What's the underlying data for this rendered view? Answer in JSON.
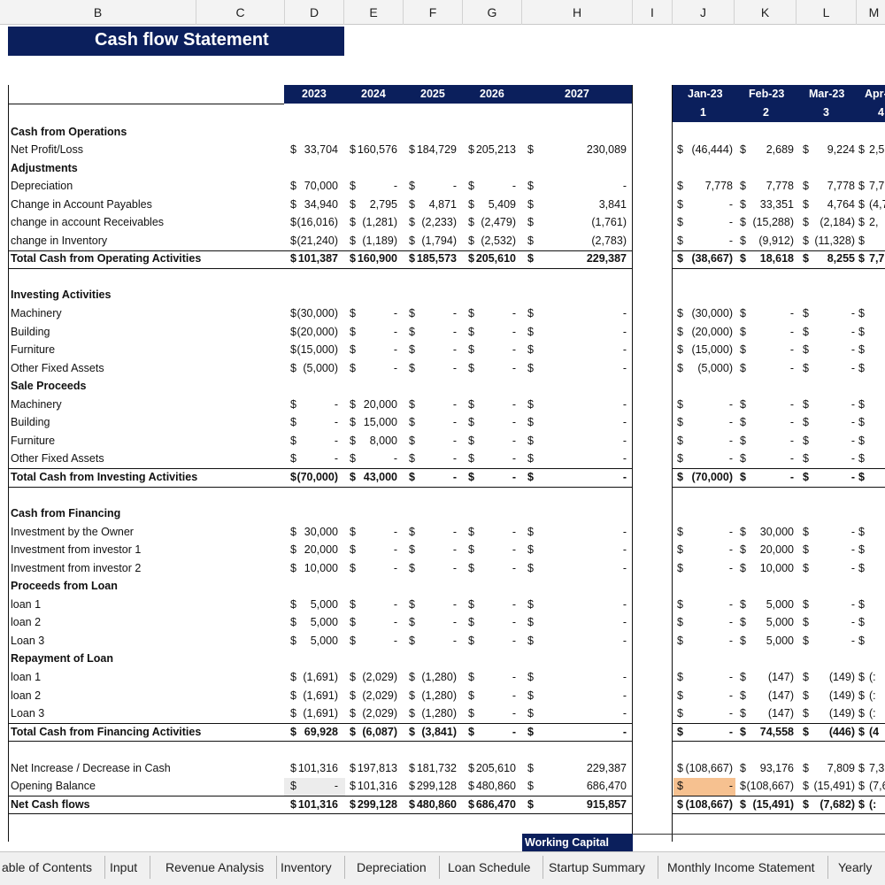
{
  "columns": [
    "B",
    "C",
    "D",
    "E",
    "F",
    "G",
    "H",
    "I",
    "J",
    "K",
    "L",
    "M"
  ],
  "title": "Cash flow Statement",
  "annual_headers": [
    "2023",
    "2024",
    "2025",
    "2026",
    "2027"
  ],
  "monthly_headers": [
    "Jan-23",
    "Feb-23",
    "Mar-23",
    "Apr-"
  ],
  "monthly_numbers": [
    "1",
    "2",
    "3",
    "4"
  ],
  "rows": [
    {
      "label": "Cash from Operations",
      "bold": true,
      "section": true
    },
    {
      "label": "Net Profit/Loss",
      "a": [
        "$ 33,704",
        "$ 160,576",
        "$ 184,729",
        "$ 205,213",
        "$"
      ],
      "h": "230,089",
      "m": [
        "$ (46,444)",
        "$ 2,689",
        "$ 9,224",
        "$ 2,5"
      ]
    },
    {
      "label": "Adjustments",
      "bold": true,
      "section": true
    },
    {
      "label": "Depreciation",
      "a": [
        "$ 70,000",
        "$ -",
        "$ -",
        "$ -",
        "$"
      ],
      "h": "-",
      "m": [
        "$ 7,778",
        "$ 7,778",
        "$ 7,778",
        "$ 7,7"
      ]
    },
    {
      "label": "Change in Account Payables",
      "a": [
        "$ 34,940",
        "$ 2,795",
        "$ 4,871",
        "$ 5,409",
        "$"
      ],
      "h": "3,841",
      "m": [
        "$ -",
        "$ 33,351",
        "$ 4,764",
        "$ (4,7"
      ]
    },
    {
      "label": "change in account Receivables",
      "a": [
        "$ (16,016)",
        "$ (1,281)",
        "$ (2,233)",
        "$ (2,479)",
        "$"
      ],
      "h": "(1,761)",
      "m": [
        "$ -",
        "$ (15,288)",
        "$ (2,184)",
        "$ 2,"
      ]
    },
    {
      "label": "change in Inventory",
      "a": [
        "$ (21,240)",
        "$ (1,189)",
        "$ (1,794)",
        "$ (2,532)",
        "$"
      ],
      "h": "(2,783)",
      "m": [
        "$ -",
        "$ (9,912)",
        "$ (11,328)",
        "$"
      ]
    },
    {
      "label": "Total Cash from Operating Activities",
      "bold": true,
      "total": true,
      "a": [
        "$ 101,387",
        "$ 160,900",
        "$ 185,573",
        "$ 205,610",
        "$"
      ],
      "h": "229,387",
      "m": [
        "$ (38,667)",
        "$ 18,618",
        "$ 8,255",
        "$ 7,7"
      ]
    },
    {
      "label": "",
      "blank": true
    },
    {
      "label": "Investing Activities",
      "bold": true,
      "section": true
    },
    {
      "label": "Machinery",
      "a": [
        "$ (30,000)",
        "$ -",
        "$ -",
        "$ -",
        "$"
      ],
      "h": "-",
      "m": [
        "$ (30,000)",
        "$ -",
        "$ -",
        "$"
      ]
    },
    {
      "label": "Building",
      "a": [
        "$ (20,000)",
        "$ -",
        "$ -",
        "$ -",
        "$"
      ],
      "h": "-",
      "m": [
        "$ (20,000)",
        "$ -",
        "$ -",
        "$"
      ]
    },
    {
      "label": "Furniture",
      "a": [
        "$ (15,000)",
        "$ -",
        "$ -",
        "$ -",
        "$"
      ],
      "h": "-",
      "m": [
        "$ (15,000)",
        "$ -",
        "$ -",
        "$"
      ]
    },
    {
      "label": "Other Fixed Assets",
      "a": [
        "$ (5,000)",
        "$ -",
        "$ -",
        "$ -",
        "$"
      ],
      "h": "-",
      "m": [
        "$ (5,000)",
        "$ -",
        "$ -",
        "$"
      ]
    },
    {
      "label": "Sale Proceeds",
      "bold": true,
      "section": true
    },
    {
      "label": "Machinery",
      "a": [
        "$ -",
        "$ 20,000",
        "$ -",
        "$ -",
        "$"
      ],
      "h": "-",
      "m": [
        "$ -",
        "$ -",
        "$ -",
        "$"
      ]
    },
    {
      "label": "Building",
      "a": [
        "$ -",
        "$ 15,000",
        "$ -",
        "$ -",
        "$"
      ],
      "h": "-",
      "m": [
        "$ -",
        "$ -",
        "$ -",
        "$"
      ]
    },
    {
      "label": "Furniture",
      "a": [
        "$ -",
        "$ 8,000",
        "$ -",
        "$ -",
        "$"
      ],
      "h": "-",
      "m": [
        "$ -",
        "$ -",
        "$ -",
        "$"
      ]
    },
    {
      "label": "Other Fixed Assets",
      "a": [
        "$ -",
        "$ -",
        "$ -",
        "$ -",
        "$"
      ],
      "h": "-",
      "m": [
        "$ -",
        "$ -",
        "$ -",
        "$"
      ]
    },
    {
      "label": "Total Cash from Investing Activities",
      "bold": true,
      "total": true,
      "a": [
        "$ (70,000)",
        "$ 43,000",
        "$ -",
        "$ -",
        "$"
      ],
      "h": "-",
      "m": [
        "$ (70,000)",
        "$ -",
        "$ -",
        "$"
      ]
    },
    {
      "label": "",
      "blank": true
    },
    {
      "label": "Cash from Financing",
      "bold": true,
      "section": true
    },
    {
      "label": "Investment by the Owner",
      "a": [
        "$ 30,000",
        "$ -",
        "$ -",
        "$ -",
        "$"
      ],
      "h": "-",
      "m": [
        "$ -",
        "$ 30,000",
        "$ -",
        "$"
      ]
    },
    {
      "label": "Investment from investor 1",
      "a": [
        "$ 20,000",
        "$ -",
        "$ -",
        "$ -",
        "$"
      ],
      "h": "-",
      "m": [
        "$ -",
        "$ 20,000",
        "$ -",
        "$"
      ]
    },
    {
      "label": "Investment from investor 2",
      "a": [
        "$ 10,000",
        "$ -",
        "$ -",
        "$ -",
        "$"
      ],
      "h": "-",
      "m": [
        "$ -",
        "$ 10,000",
        "$ -",
        "$"
      ]
    },
    {
      "label": "Proceeds from Loan",
      "bold": true,
      "section": true
    },
    {
      "label": "loan 1",
      "a": [
        "$ 5,000",
        "$ -",
        "$ -",
        "$ -",
        "$"
      ],
      "h": "-",
      "m": [
        "$ -",
        "$ 5,000",
        "$ -",
        "$"
      ]
    },
    {
      "label": "loan 2",
      "a": [
        "$ 5,000",
        "$ -",
        "$ -",
        "$ -",
        "$"
      ],
      "h": "-",
      "m": [
        "$ -",
        "$ 5,000",
        "$ -",
        "$"
      ]
    },
    {
      "label": "Loan 3",
      "a": [
        "$ 5,000",
        "$ -",
        "$ -",
        "$ -",
        "$"
      ],
      "h": "-",
      "m": [
        "$ -",
        "$ 5,000",
        "$ -",
        "$"
      ]
    },
    {
      "label": "Repayment of Loan",
      "bold": true,
      "section": true
    },
    {
      "label": "loan 1",
      "a": [
        "$ (1,691)",
        "$ (2,029)",
        "$ (1,280)",
        "$ -",
        "$"
      ],
      "h": "-",
      "m": [
        "$ -",
        "$ (147)",
        "$ (149)",
        "$ (:"
      ]
    },
    {
      "label": "loan 2",
      "a": [
        "$ (1,691)",
        "$ (2,029)",
        "$ (1,280)",
        "$ -",
        "$"
      ],
      "h": "-",
      "m": [
        "$ -",
        "$ (147)",
        "$ (149)",
        "$ (:"
      ]
    },
    {
      "label": "Loan 3",
      "a": [
        "$ (1,691)",
        "$ (2,029)",
        "$ (1,280)",
        "$ -",
        "$"
      ],
      "h": "-",
      "m": [
        "$ -",
        "$ (147)",
        "$ (149)",
        "$ (:"
      ]
    },
    {
      "label": "Total Cash from Financing Activities",
      "bold": true,
      "total": true,
      "a": [
        "$ 69,928",
        "$ (6,087)",
        "$ (3,841)",
        "$ -",
        "$"
      ],
      "h": "-",
      "m": [
        "$ -",
        "$ 74,558",
        "$ (446)",
        "$ (4"
      ]
    },
    {
      "label": "",
      "blank": true
    },
    {
      "label": "Net Increase / Decrease in Cash",
      "a": [
        "$ 101,316",
        "$ 197,813",
        "$ 181,732",
        "$ 205,610",
        "$"
      ],
      "h": "229,387",
      "m": [
        "$ (108,667)",
        "$ 93,176",
        "$ 7,809",
        "$ 7,3"
      ]
    },
    {
      "label": "Opening Balance",
      "a": [
        "$ -",
        "$ 101,316",
        "$ 299,128",
        "$ 480,860",
        "$"
      ],
      "h": "686,470",
      "m": [
        "$ -",
        "$ (108,667)",
        "$ (15,491)",
        "$ (7,6"
      ]
    },
    {
      "label": "Net Cash flows",
      "bold": true,
      "total": true,
      "a": [
        "$ 101,316",
        "$ 299,128",
        "$ 480,860",
        "$ 686,470",
        "$"
      ],
      "h": "915,857",
      "m": [
        "$ (108,667)",
        "$ (15,491)",
        "$ (7,682)",
        "$ (:"
      ]
    }
  ],
  "working_capital_label": "Working Capital",
  "sheet_tabs": [
    "able of Contents",
    "Input",
    "Revenue Analysis",
    "Inventory",
    "Depreciation",
    "Loan Schedule",
    "Startup Summary",
    "Monthly Income Statement",
    "Yearly Pro"
  ],
  "colors": {
    "navy": "#0b1f5c",
    "highlight": "#f6c190"
  }
}
